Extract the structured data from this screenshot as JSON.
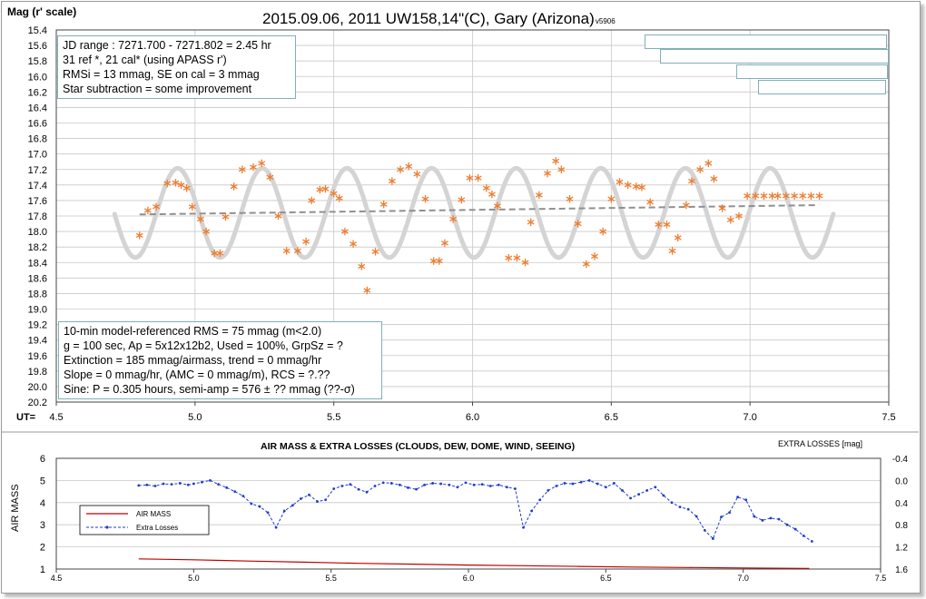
{
  "top_chart": {
    "title": "2015.09.06, 2011 UW158,14\"(C), Gary (Arizona)",
    "version": "- v5906",
    "ylabel": "Mag (r' scale)",
    "xlabel_prefix": "UT=",
    "y_ticks": [
      "15.4",
      "15.6",
      "15.8",
      "16.0",
      "16.2",
      "16.4",
      "16.6",
      "16.8",
      "17.0",
      "17.2",
      "17.4",
      "17.6",
      "17.8",
      "18.0",
      "18.2",
      "18.4",
      "18.6",
      "18.8",
      "19.0",
      "19.2",
      "19.4",
      "19.6",
      "19.8",
      "20.0",
      "20.2"
    ],
    "x_ticks": [
      "4.5",
      "5.0",
      "5.5",
      "6.0",
      "6.5",
      "7.0",
      "7.5"
    ],
    "info_box_top": [
      "JD range : 7271.700 - 7271.802 = 2.45 hr",
      " 31 ref *, 21 cal* (using APASS r')",
      "RMSi = 13 mmag, SE on cal = 3 mmag",
      "Star subtraction = some improvement"
    ],
    "info_box_bottom": [
      "10-min model-referenced RMS = 75 mmag (m<2.0)",
      "g = 100 sec, Ap = 5x12x12b2, Used = 100%,  GrpSz = ?",
      "Extinction = 185 mmag/airmass, trend = 0 mmag/hr",
      "Slope = 0 mmag/hr, (AMC = 0 mmag/m), RCS = ?.??",
      "Sine: P = 0.305 hours, semi-amp = 576 ± ?? mmag (??-σ)"
    ]
  },
  "bottom_chart": {
    "title": "AIR MASS & EXTRA LOSSES (CLOUDS, DEW, DOME, WIND, SEEING)",
    "ylabel": "AIR MASS",
    "y2label": "EXTRA LOSSES [mag]",
    "y_ticks": [
      "1",
      "2",
      "3",
      "4",
      "5",
      "6"
    ],
    "y2_ticks": [
      "-0.4",
      "0.0",
      "0.4",
      "0.8",
      "1.2",
      "1.6"
    ],
    "x_ticks": [
      "4.5",
      "5.0",
      "5.5",
      "6.0",
      "6.5",
      "7.0",
      "7.5"
    ],
    "legend": [
      "AIR MASS",
      "Extra Losses"
    ]
  },
  "colors": {
    "points": "#ed7d31",
    "model": "#d4d4d4",
    "trend": "#909090",
    "airmass": "#c00000",
    "losses": "#1f3cc8",
    "grid": "#c8c8c8",
    "box_border": "#7fb0b8"
  },
  "chart_data": [
    {
      "type": "scatter",
      "title": "2015.09.06, 2011 UW158,14\"(C), Gary (Arizona)",
      "xlabel": "UT=",
      "ylabel": "Mag (r' scale)",
      "xlim": [
        4.5,
        7.5
      ],
      "ylim": [
        20.2,
        15.4
      ],
      "y_inverted": true,
      "grid": true,
      "series": [
        {
          "marker": "asterisk",
          "x": [
            4.8,
            4.83,
            4.86,
            4.9,
            4.93,
            4.95,
            4.97,
            4.99,
            5.02,
            5.04,
            5.07,
            5.09,
            5.11,
            5.14,
            5.17,
            5.21,
            5.24,
            5.27,
            5.3,
            5.33,
            5.37,
            5.4,
            5.42,
            5.45,
            5.47,
            5.5,
            5.52,
            5.54,
            5.57,
            5.6,
            5.62,
            5.65,
            5.68,
            5.71,
            5.74,
            5.77,
            5.8,
            5.83,
            5.86,
            5.88,
            5.9,
            5.93,
            5.96,
            5.99,
            6.02,
            6.05,
            6.07,
            6.09,
            6.13,
            6.16,
            6.19,
            6.21,
            6.24,
            6.27,
            6.3,
            6.32,
            6.35,
            6.38,
            6.41,
            6.44,
            6.47,
            6.5,
            6.53,
            6.56,
            6.59,
            6.61,
            6.64,
            6.67,
            6.7,
            6.72,
            6.74,
            6.77,
            6.79,
            6.82,
            6.85,
            6.87,
            6.9,
            6.93,
            6.96,
            6.99,
            7.02,
            7.05,
            7.08,
            7.1,
            7.13,
            7.16,
            7.19,
            7.22,
            7.25
          ],
          "y": [
            18.05,
            17.73,
            17.68,
            17.38,
            17.37,
            17.4,
            17.44,
            17.68,
            17.84,
            18.0,
            18.28,
            18.28,
            17.81,
            17.42,
            17.2,
            17.17,
            17.12,
            17.3,
            17.8,
            18.25,
            18.25,
            18.13,
            17.6,
            17.46,
            17.45,
            17.51,
            17.57,
            18.0,
            18.16,
            18.45,
            18.76,
            18.26,
            17.65,
            17.35,
            17.2,
            17.16,
            17.26,
            17.58,
            18.38,
            18.38,
            18.15,
            17.84,
            17.59,
            17.31,
            17.31,
            17.44,
            17.52,
            17.67,
            18.34,
            18.34,
            18.4,
            17.88,
            17.53,
            17.25,
            17.09,
            17.2,
            17.58,
            17.9,
            18.42,
            18.32,
            18.0,
            17.58,
            17.36,
            17.4,
            17.42,
            17.43,
            17.62,
            17.91,
            17.91,
            18.25,
            18.08,
            17.66,
            17.35,
            17.2,
            17.12,
            17.32,
            17.7,
            17.85,
            17.8,
            17.54,
            17.54,
            17.54,
            17.54,
            17.54,
            17.54,
            17.54,
            17.54,
            17.54,
            17.54
          ]
        }
      ],
      "model_sine": {
        "period_hr": 0.305,
        "semi_amp_mag": 0.576,
        "x_range": [
          4.71,
          7.3
        ]
      },
      "trend_line": {
        "x": [
          4.8,
          7.24
        ],
        "y": [
          17.78,
          17.66
        ]
      }
    },
    {
      "type": "line",
      "title": "AIR MASS & EXTRA LOSSES (CLOUDS, DEW, DOME, WIND, SEEING)",
      "xlim": [
        4.5,
        7.5
      ],
      "ylim": [
        1,
        6
      ],
      "y2lim": [
        -0.4,
        1.6
      ],
      "ylabel": "AIR MASS",
      "y2label": "EXTRA LOSSES [mag]",
      "series": [
        {
          "name": "AIR MASS",
          "axis": "left",
          "x": [
            4.8,
            5.0,
            5.2,
            5.4,
            5.6,
            5.8,
            6.0,
            6.2,
            6.4,
            6.6,
            6.8,
            7.0,
            7.24
          ],
          "y": [
            1.46,
            1.42,
            1.36,
            1.31,
            1.26,
            1.22,
            1.18,
            1.15,
            1.12,
            1.09,
            1.07,
            1.05,
            1.03
          ]
        },
        {
          "name": "Extra Losses",
          "axis": "right",
          "x": [
            4.8,
            4.83,
            4.86,
            4.89,
            4.92,
            4.95,
            4.98,
            5.0,
            5.03,
            5.06,
            5.09,
            5.12,
            5.15,
            5.18,
            5.21,
            5.24,
            5.27,
            5.3,
            5.33,
            5.36,
            5.39,
            5.42,
            5.45,
            5.48,
            5.51,
            5.54,
            5.57,
            5.6,
            5.63,
            5.66,
            5.69,
            5.72,
            5.75,
            5.78,
            5.81,
            5.84,
            5.87,
            5.9,
            5.93,
            5.96,
            5.99,
            6.02,
            6.05,
            6.08,
            6.11,
            6.14,
            6.17,
            6.2,
            6.23,
            6.26,
            6.29,
            6.32,
            6.35,
            6.38,
            6.41,
            6.44,
            6.47,
            6.5,
            6.53,
            6.56,
            6.59,
            6.62,
            6.65,
            6.68,
            6.71,
            6.74,
            6.77,
            6.8,
            6.83,
            6.86,
            6.89,
            6.92,
            6.95,
            6.98,
            7.01,
            7.04,
            7.07,
            7.1,
            7.13,
            7.16,
            7.19,
            7.22,
            7.25
          ],
          "y": [
            0.09,
            0.08,
            0.1,
            0.06,
            0.07,
            0.05,
            0.08,
            0.06,
            0.03,
            0.0,
            0.07,
            0.13,
            0.2,
            0.28,
            0.42,
            0.47,
            0.58,
            0.85,
            0.55,
            0.45,
            0.33,
            0.26,
            0.38,
            0.35,
            0.15,
            0.1,
            0.07,
            0.16,
            0.21,
            0.1,
            0.04,
            0.05,
            0.08,
            0.13,
            0.16,
            0.08,
            0.05,
            0.06,
            0.08,
            0.12,
            0.04,
            0.08,
            0.07,
            0.1,
            0.08,
            0.12,
            0.15,
            0.85,
            0.55,
            0.35,
            0.18,
            0.1,
            0.05,
            0.06,
            0.03,
            0.0,
            0.06,
            0.12,
            0.05,
            0.18,
            0.32,
            0.25,
            0.18,
            0.12,
            0.27,
            0.4,
            0.48,
            0.52,
            0.65,
            0.9,
            1.05,
            0.66,
            0.58,
            0.3,
            0.35,
            0.65,
            0.72,
            0.68,
            0.7,
            0.8,
            0.88,
            1.0,
            1.1
          ]
        }
      ]
    }
  ]
}
